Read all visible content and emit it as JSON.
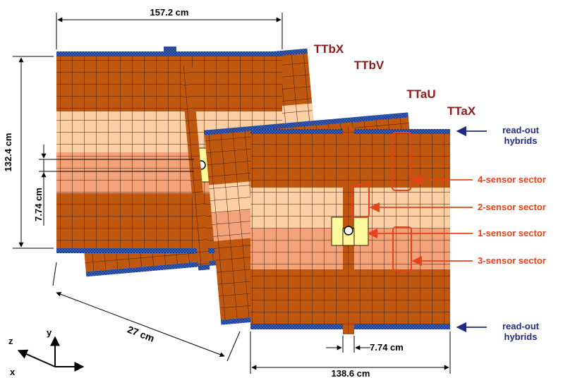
{
  "dimensions": {
    "width_b": "157.2 cm",
    "height_b": "132.4 cm",
    "sector_b": "7.74 cm",
    "separation": "27 cm",
    "width_a": "138.6 cm",
    "sector_a": "7.74 cm"
  },
  "layers": {
    "ttbx": "TTbX",
    "ttbv": "TTbV",
    "ttau": "TTaU",
    "ttax": "TTaX"
  },
  "readout": {
    "top_line1": "read-out",
    "top_line2": "hybrids",
    "bottom_line1": "read-out",
    "bottom_line2": "hybrids"
  },
  "sectors": {
    "four": "4-sensor sector",
    "two": "2-sensor sector",
    "one": "1-sensor sector",
    "three": "3-sensor sector"
  },
  "axes": {
    "x": "x",
    "y": "y",
    "z": "z"
  },
  "colors": {
    "dark_brown": "#c0570f",
    "light_peach": "#fdd0a5",
    "salmon": "#f4a27a",
    "yellow": "#fbfb9b",
    "hybrid_blue": "#3c6fd8",
    "label_dark_red": "#8b1a1a",
    "label_red": "#e8421a",
    "label_navy": "#1f2a80"
  }
}
